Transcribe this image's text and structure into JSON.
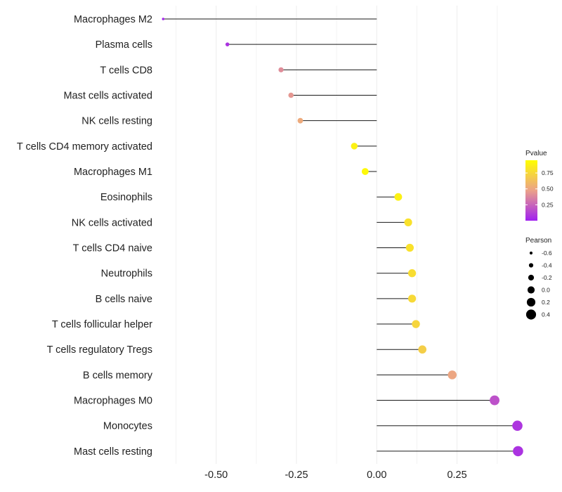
{
  "chart_data": {
    "type": "lollipop",
    "title": "",
    "xlabel": "",
    "ylabel": "",
    "xlim": [
      -0.67,
      0.45
    ],
    "x_ticks": [
      -0.5,
      -0.25,
      0.0,
      0.25
    ],
    "x_tick_labels": [
      "-0.50",
      "-0.25",
      "0.00",
      "0.25"
    ],
    "grid": true,
    "categories": [
      "Macrophages M2",
      "Plasma cells",
      "T cells CD8",
      "Mast cells activated",
      "NK cells resting",
      "T cells CD4 memory activated",
      "Macrophages M1",
      "Eosinophils",
      "NK cells activated",
      "T cells CD4 naive",
      "Neutrophils",
      "B cells naive",
      "T cells follicular helper",
      "T cells regulatory  Tregs ",
      "B cells memory",
      "Macrophages M0",
      "Monocytes",
      "Mast cells resting"
    ],
    "values": [
      -0.665,
      -0.465,
      -0.298,
      -0.267,
      -0.238,
      -0.07,
      -0.036,
      0.067,
      0.098,
      0.103,
      0.11,
      0.11,
      0.122,
      0.142,
      0.235,
      0.367,
      0.438,
      0.44
    ],
    "pvalues": [
      0.02,
      0.07,
      0.4,
      0.44,
      0.52,
      0.88,
      0.92,
      0.88,
      0.8,
      0.8,
      0.78,
      0.76,
      0.74,
      0.7,
      0.5,
      0.18,
      0.08,
      0.07
    ],
    "color_legend": {
      "title": "Pvalue",
      "ticks": [
        0.75,
        0.5,
        0.25
      ],
      "tick_labels": [
        "0.75",
        "0.50",
        "0.25"
      ],
      "range": [
        0.0,
        0.95
      ],
      "low_color": "#a020f0",
      "mid_color": "#eba189",
      "high_color": "#ffff00"
    },
    "size_legend": {
      "title": "Pearson",
      "values": [
        -0.6,
        -0.4,
        -0.2,
        0.0,
        0.2,
        0.4
      ],
      "labels": [
        "-0.6",
        "-0.4",
        "-0.2",
        "0.0",
        "0.2",
        "0.4"
      ]
    },
    "legend_position": "right"
  }
}
